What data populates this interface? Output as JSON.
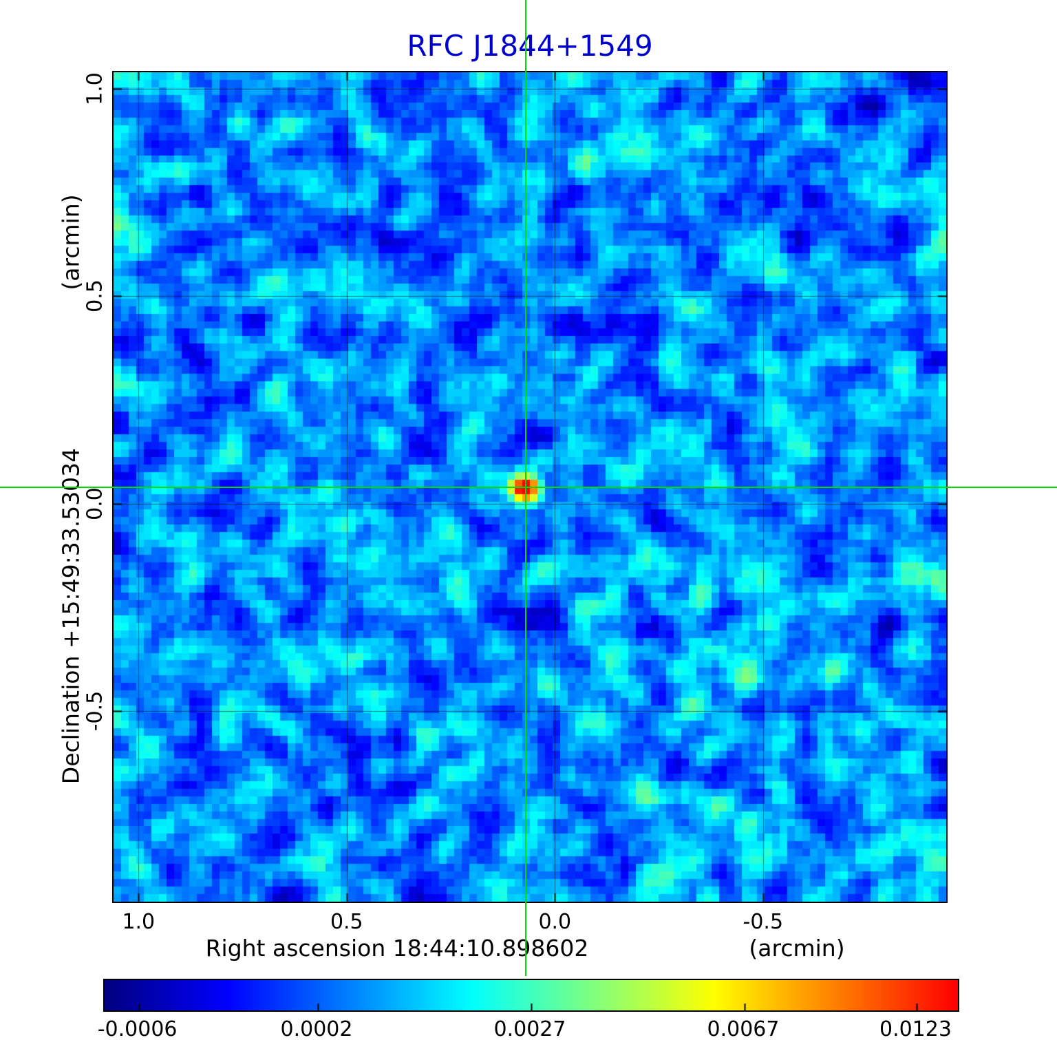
{
  "chart_data": {
    "type": "heatmap",
    "title": "RFC J1844+1549",
    "title_color": "#0000cd",
    "xlabel": "Right ascension  18:44:10.898602",
    "xunit": "(arcmin)",
    "ylabel": "Declination  +15:49:33.53034",
    "yunit": "(arcmin)",
    "x_tick_labels": [
      "1.0",
      "0.5",
      "0.0",
      "-0.5"
    ],
    "x_tick_values": [
      1.0,
      0.5,
      0.0,
      -0.5
    ],
    "y_tick_labels": [
      "1.0",
      "0.5",
      "0.0",
      "-0.5"
    ],
    "y_tick_values": [
      1.0,
      0.5,
      0.0,
      -0.5
    ],
    "x_range_arcmin": [
      1.06,
      -0.94
    ],
    "y_range_arcmin": [
      1.04,
      -0.96
    ],
    "grid": true,
    "colormap": "jet",
    "colorbar_tick_labels": [
      "-0.0006",
      "0.0002",
      "0.0027",
      "0.0067",
      "0.0123"
    ],
    "colorbar_tick_values": [
      -0.0006,
      0.0002,
      0.0027,
      0.0067,
      0.0123
    ],
    "colorbar_tick_positions": [
      0.04,
      0.25,
      0.5,
      0.75,
      0.952
    ],
    "value_range": [
      -0.0008,
      0.0135
    ],
    "source": {
      "ra_offset_arcmin": 0.07,
      "dec_offset_arcmin": 0.04,
      "peak_value": 0.0123
    },
    "crosshair": {
      "color": "#00dc00",
      "x_arcmin": 0.07,
      "y_arcmin": 0.04
    },
    "background": {
      "description": "blue correlated noise field, typical values near 0.0002",
      "noise_mean_t": 0.3,
      "noise_std_t": 0.07
    }
  }
}
